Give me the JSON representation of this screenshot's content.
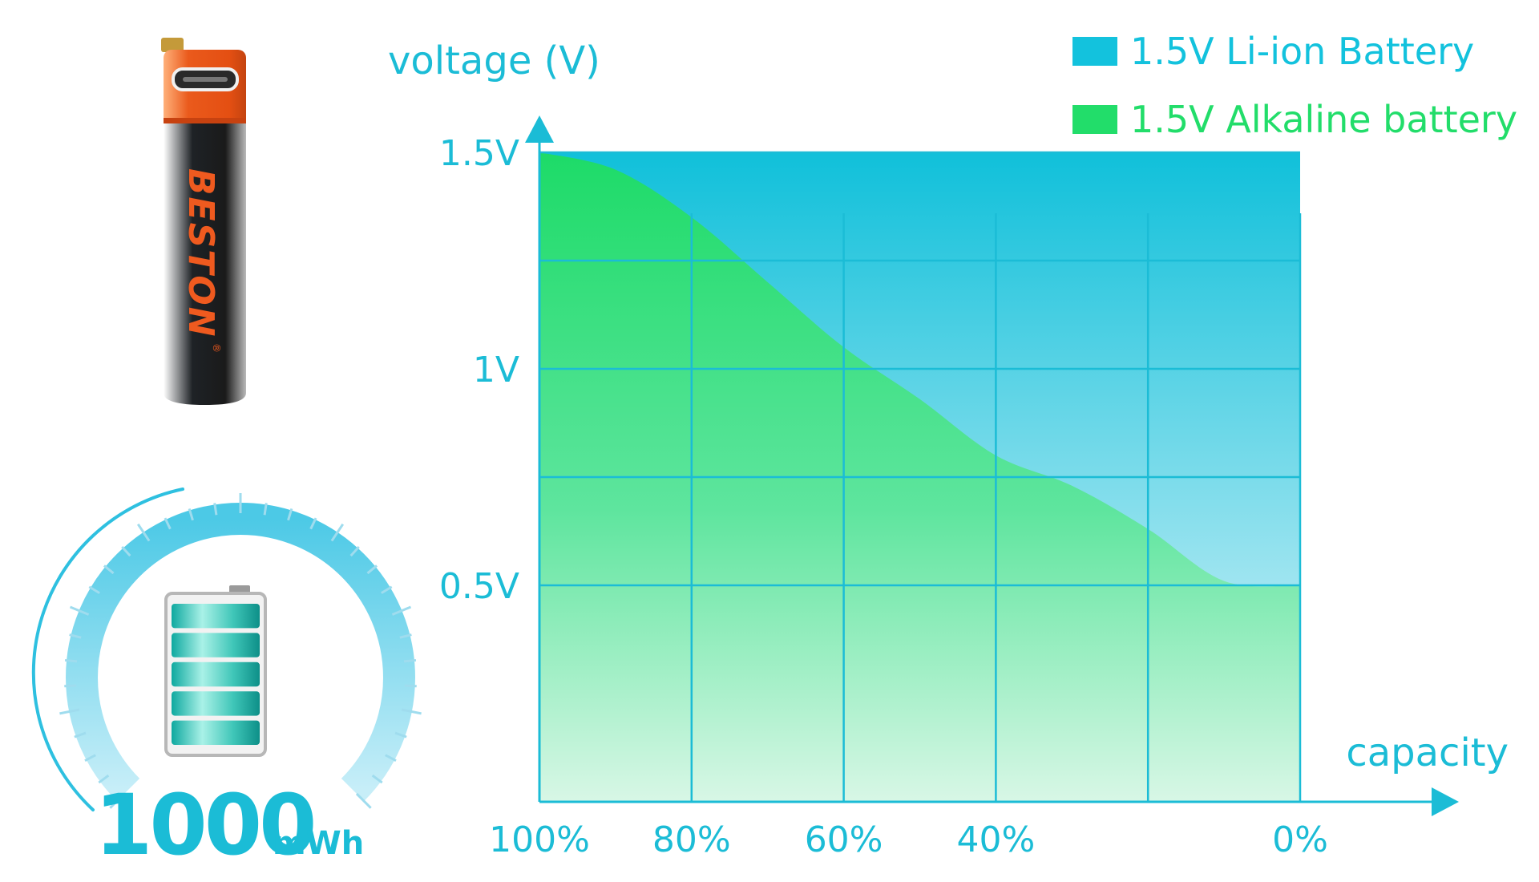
{
  "product": {
    "brand": "BESTON",
    "registered_mark": "®",
    "energy_value": "1000",
    "energy_unit": "mWh",
    "battery_fill_fraction": 1.0
  },
  "colors": {
    "accent": "#1bbcd6",
    "li_ion": "#13c2dd",
    "alkaline": "#22dd6a",
    "battery_orange": "#e8541b",
    "battery_black": "#1c1c1c"
  },
  "chart_data": {
    "type": "area",
    "ylabel": "voltage (V)",
    "xlabel": "capacity",
    "x_categories": [
      "100%",
      "80%",
      "60%",
      "40%",
      "0%"
    ],
    "x": [
      100,
      80,
      60,
      40,
      20,
      0
    ],
    "y_ticks": [
      {
        "value": 1.5,
        "label": "1.5V"
      },
      {
        "value": 1.0,
        "label": "1V"
      },
      {
        "value": 0.5,
        "label": "0.5V"
      }
    ],
    "ylim": [
      0.0,
      1.75
    ],
    "grid": true,
    "legend_position": "top-right",
    "series": [
      {
        "name": "1.5V Li-ion Battery",
        "color": "#13c2dd",
        "points": [
          [
            100,
            1.5
          ],
          [
            80,
            1.5
          ],
          [
            60,
            1.5
          ],
          [
            40,
            1.5
          ],
          [
            20,
            1.5
          ],
          [
            0,
            1.5
          ]
        ]
      },
      {
        "name": "1.5V Alkaline battery",
        "color": "#22dd6a",
        "points": [
          [
            100,
            1.5
          ],
          [
            90,
            1.46
          ],
          [
            80,
            1.35
          ],
          [
            70,
            1.2
          ],
          [
            60,
            1.05
          ],
          [
            50,
            0.93
          ],
          [
            40,
            0.8
          ],
          [
            30,
            0.73
          ],
          [
            20,
            0.63
          ],
          [
            10,
            0.51
          ],
          [
            0,
            0.5
          ]
        ]
      }
    ]
  }
}
